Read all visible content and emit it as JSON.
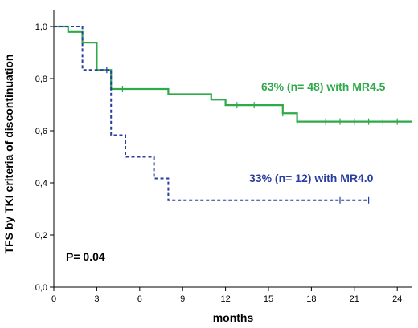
{
  "chart_data": {
    "type": "line",
    "xlabel": "months",
    "ylabel": "TFS by TKI criteria of discontinuation",
    "xlim": [
      0,
      25
    ],
    "ylim": [
      0,
      1
    ],
    "xticks": [
      "0",
      "3",
      "6",
      "9",
      "12",
      "15",
      "18",
      "21",
      "24"
    ],
    "yticks": [
      "0,0",
      "0,2",
      "0,4",
      "0,6",
      "0,8",
      "1,0"
    ],
    "series": [
      {
        "label": "63% (n= 48) with MR4.5",
        "color": "#2eaa4a",
        "style": "solid",
        "steps": [
          [
            0,
            1.0
          ],
          [
            1,
            0.979
          ],
          [
            2,
            0.938
          ],
          [
            3,
            0.833
          ],
          [
            4,
            0.76
          ],
          [
            8,
            0.74
          ],
          [
            11,
            0.719
          ],
          [
            12,
            0.698
          ],
          [
            16,
            0.667
          ],
          [
            17,
            0.635
          ],
          [
            25,
            0.635
          ]
        ],
        "censors": [
          [
            4.8,
            0.76
          ],
          [
            12.8,
            0.698
          ],
          [
            14,
            0.698
          ],
          [
            16,
            0.667
          ],
          [
            17,
            0.635
          ],
          [
            19,
            0.635
          ],
          [
            20,
            0.635
          ],
          [
            21,
            0.635
          ],
          [
            22,
            0.635
          ],
          [
            23,
            0.635
          ],
          [
            24,
            0.635
          ]
        ]
      },
      {
        "label": "33% (n= 12) with MR4.0",
        "color": "#2a3da0",
        "style": "dashed",
        "steps": [
          [
            0,
            1.0
          ],
          [
            2,
            0.833
          ],
          [
            4,
            0.583
          ],
          [
            5,
            0.5
          ],
          [
            7,
            0.417
          ],
          [
            8,
            0.333
          ],
          [
            22,
            0.333
          ]
        ],
        "censors": [
          [
            3.7,
            0.833
          ],
          [
            20,
            0.333
          ],
          [
            22,
            0.333
          ]
        ]
      }
    ],
    "annotations": [
      {
        "text": "P= 0.04",
        "color": "#000000"
      }
    ]
  }
}
